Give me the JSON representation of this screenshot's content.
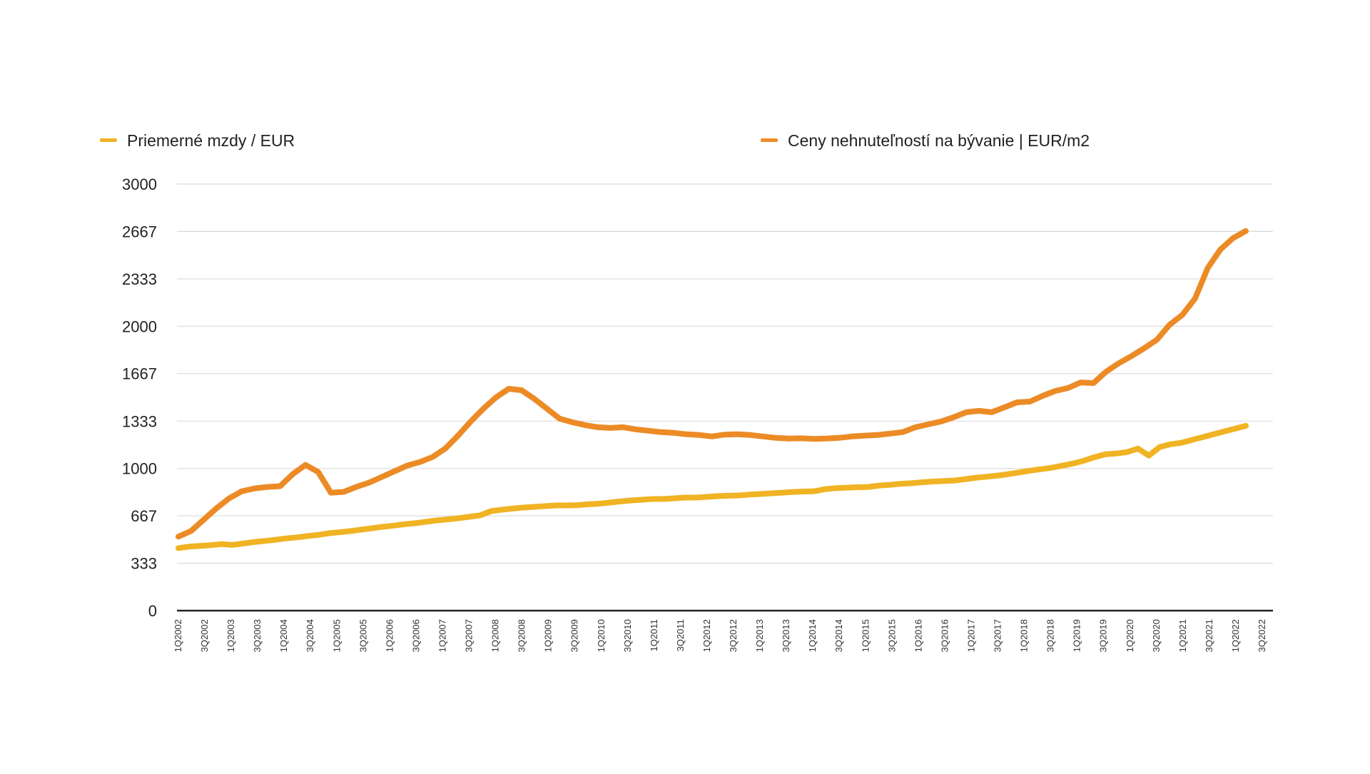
{
  "chart_data": {
    "type": "line",
    "title": "",
    "xlabel": "",
    "ylabel": "",
    "ylim": [
      0,
      3000
    ],
    "grid": true,
    "legend_position": "top",
    "yticks": [
      "0",
      "333",
      "667",
      "1000",
      "1333",
      "1667",
      "2000",
      "2333",
      "2667",
      "3000"
    ],
    "ytick_values": [
      0,
      333,
      667,
      1000,
      1333,
      1667,
      2000,
      2333,
      2667,
      3000
    ],
    "xtick_labels": [
      "1Q2002",
      "3Q2002",
      "1Q2003",
      "3Q2003",
      "1Q2004",
      "3Q2004",
      "1Q2005",
      "3Q2005",
      "1Q2006",
      "3Q2006",
      "1Q2007",
      "3Q2007",
      "1Q2008",
      "3Q2008",
      "1Q2009",
      "3Q2009",
      "1Q2010",
      "3Q2010",
      "1Q2011",
      "3Q2011",
      "1Q2012",
      "3Q2012",
      "1Q2013",
      "3Q2013",
      "1Q2014",
      "3Q2014",
      "1Q2015",
      "3Q2015",
      "1Q2016",
      "3Q2016",
      "1Q2017",
      "3Q2017",
      "1Q2018",
      "3Q2018",
      "1Q2019",
      "3Q2019",
      "1Q2020",
      "3Q2020",
      "1Q2021",
      "3Q2021",
      "1Q2022",
      "3Q2022"
    ],
    "series": [
      {
        "name": "Priemerné mzdy / EUR",
        "color": "#f0b323",
        "values": [
          440,
          450,
          455,
          460,
          468,
          462,
          472,
          482,
          490,
          498,
          508,
          515,
          525,
          533,
          545,
          552,
          560,
          570,
          580,
          590,
          598,
          608,
          615,
          625,
          635,
          642,
          650,
          660,
          670,
          700,
          710,
          718,
          725,
          730,
          735,
          740,
          740,
          742,
          748,
          752,
          760,
          768,
          775,
          780,
          785,
          785,
          790,
          795,
          795,
          800,
          805,
          808,
          810,
          816,
          820,
          825,
          830,
          835,
          838,
          840,
          855,
          862,
          865,
          868,
          870,
          880,
          885,
          892,
          896,
          903,
          908,
          912,
          915,
          925,
          935,
          942,
          950,
          960,
          972,
          985,
          995,
          1005,
          1020,
          1035,
          1055,
          1080,
          1100,
          1105,
          1115,
          1140,
          1090,
          1150,
          1170,
          1180,
          1200,
          1220,
          1240,
          1260,
          1280,
          1300
        ]
      },
      {
        "name": "Ceny nehnuteľností na bývanie | EUR/m2",
        "color": "#ec8b26",
        "values": [
          520,
          560,
          640,
          720,
          790,
          840,
          860,
          870,
          875,
          960,
          1025,
          975,
          830,
          835,
          870,
          900,
          940,
          980,
          1020,
          1045,
          1080,
          1140,
          1230,
          1330,
          1420,
          1500,
          1560,
          1550,
          1490,
          1420,
          1350,
          1325,
          1305,
          1290,
          1285,
          1290,
          1275,
          1265,
          1255,
          1250,
          1240,
          1235,
          1225,
          1238,
          1240,
          1235,
          1225,
          1215,
          1210,
          1212,
          1208,
          1210,
          1215,
          1225,
          1230,
          1235,
          1245,
          1255,
          1290,
          1310,
          1330,
          1360,
          1395,
          1405,
          1395,
          1430,
          1465,
          1470,
          1510,
          1545,
          1565,
          1605,
          1600,
          1680,
          1740,
          1790,
          1845,
          1905,
          2010,
          2080,
          2195,
          2410,
          2540,
          2620,
          2670
        ]
      }
    ]
  }
}
